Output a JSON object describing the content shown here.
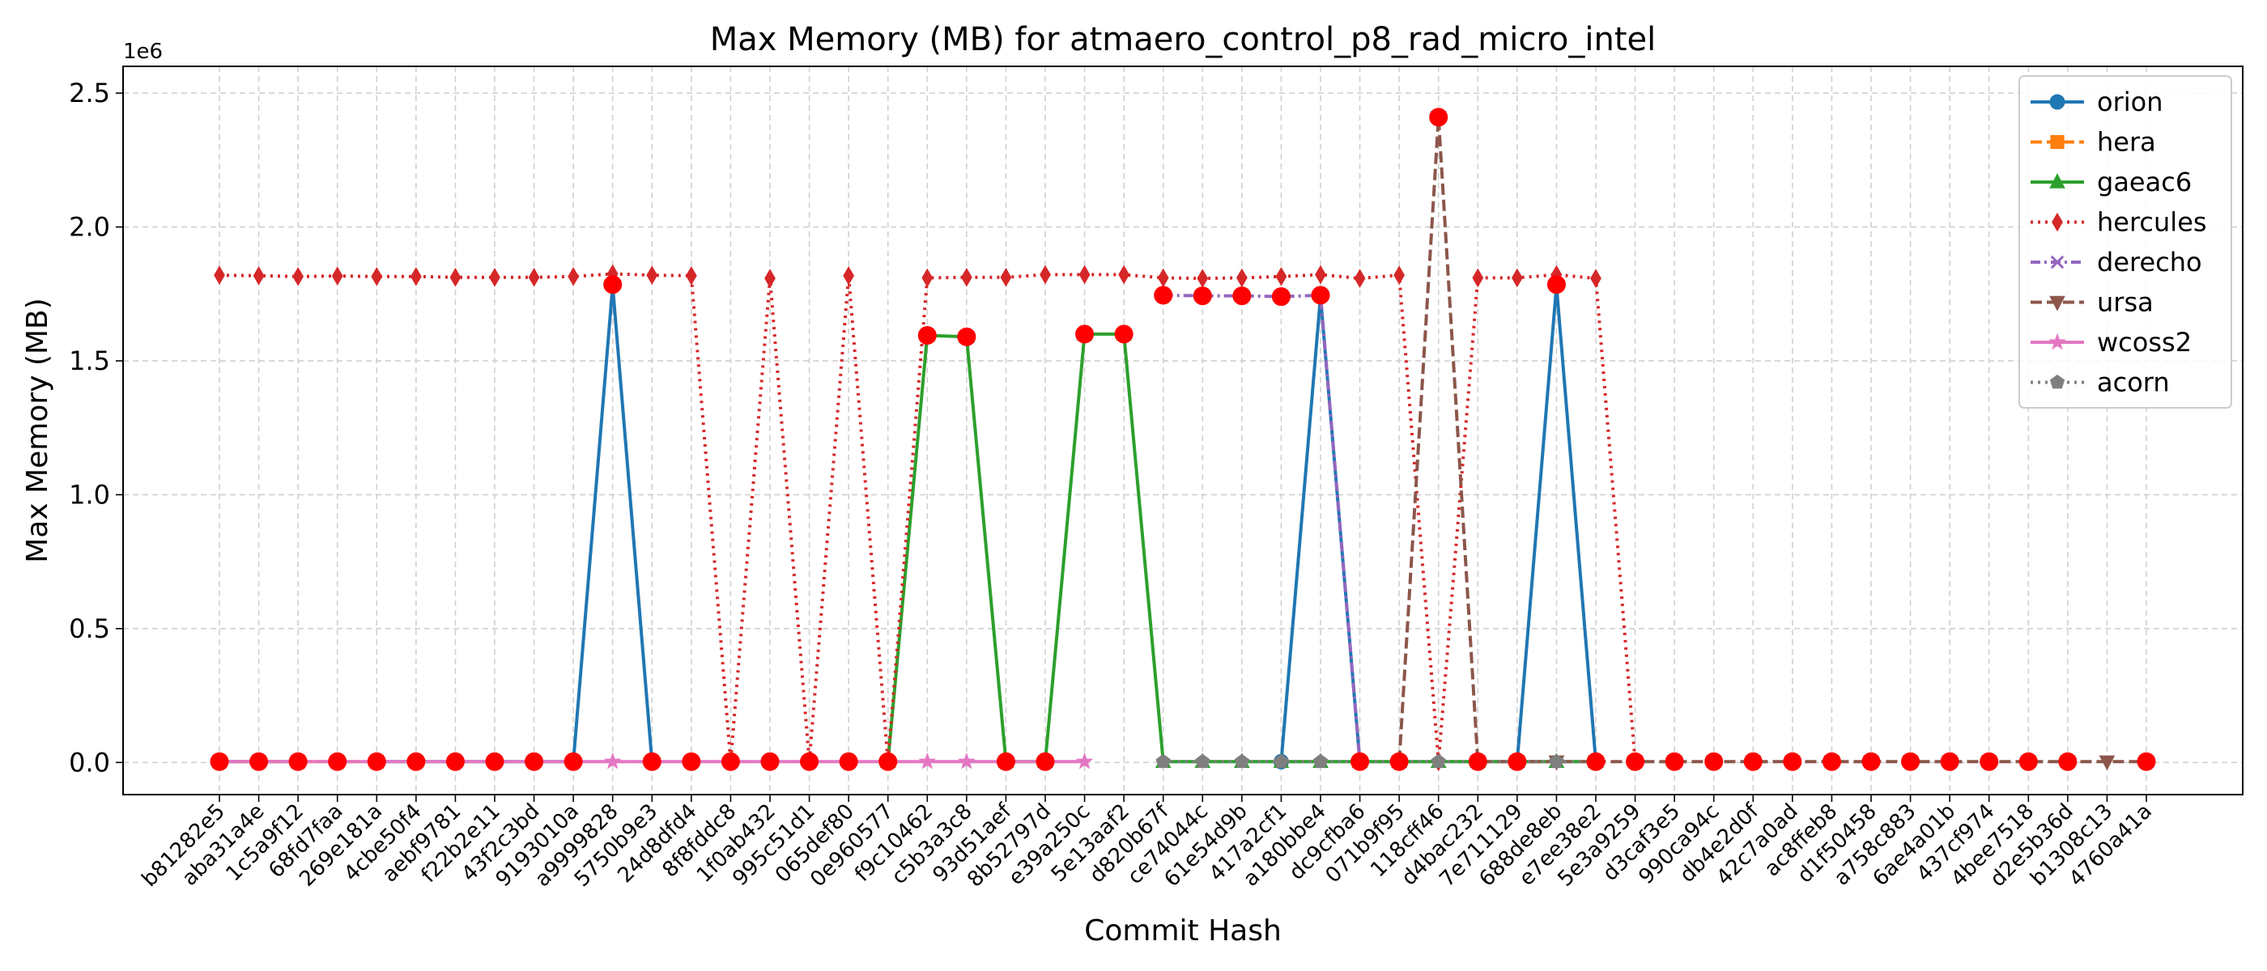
{
  "chart_data": {
    "type": "line",
    "title": "Max Memory (MB) for atmaero_control_p8_rad_micro_intel",
    "xlabel": "Commit Hash",
    "ylabel": "Max Memory (MB)",
    "y_offset_label": "1e6",
    "ylim": [
      -120000,
      2600000
    ],
    "yticks": [
      0,
      500000,
      1000000,
      1500000,
      2000000,
      2500000
    ],
    "ytick_labels": [
      "0.0",
      "0.5",
      "1.0",
      "1.5",
      "2.0",
      "2.5"
    ],
    "grid": true,
    "legend_position": "top-right",
    "categories": [
      "b81282e5",
      "aba31a4e",
      "1c5a9f12",
      "68fd7faa",
      "269e181a",
      "4cbe50f4",
      "aebf9781",
      "f22b2e11",
      "43f2c3bd",
      "9193010a",
      "a9999828",
      "5750b9e3",
      "24d8dfd4",
      "8f8fddc8",
      "1f0ab432",
      "995c51d1",
      "065def80",
      "0e960577",
      "f9c10462",
      "c5b3a3c8",
      "93d51aef",
      "8b52797d",
      "e39a250c",
      "5e13aaf2",
      "d820b67f",
      "ce74044c",
      "61e54d9b",
      "417a2cf1",
      "a180bbe4",
      "dc9cfba6",
      "071b9f95",
      "118cff46",
      "d4bac232",
      "7e711129",
      "688de8eb",
      "e7ee38e2",
      "5e3a9259",
      "d3caf3e5",
      "990ca94c",
      "db4e2d0f",
      "42c7a0ad",
      "ac8ffeb8",
      "d1f50458",
      "a758c883",
      "6ae4a01b",
      "437cf974",
      "4bee7518",
      "d2e5b36d",
      "b1308c13",
      "4760a41a"
    ],
    "series": [
      {
        "name": "orion",
        "color": "#1f77b4",
        "marker": "circle",
        "dash": "solid",
        "values": [
          3000,
          3000,
          3000,
          null,
          3000,
          3000,
          3000,
          3000,
          3000,
          3000,
          1780000,
          3000,
          null,
          null,
          null,
          null,
          null,
          null,
          null,
          null,
          null,
          null,
          null,
          null,
          null,
          null,
          null,
          3000,
          1740000,
          3000,
          null,
          null,
          null,
          3000,
          1780000,
          3000,
          null,
          null,
          null,
          null,
          null,
          null,
          null,
          null,
          null,
          null,
          null,
          null,
          null,
          null
        ]
      },
      {
        "name": "hera",
        "color": "#ff7f0e",
        "marker": "square",
        "dash": "dashed",
        "values": [
          3000,
          3000,
          3000,
          3000,
          3000,
          null,
          null,
          null,
          null,
          null,
          null,
          null,
          null,
          null,
          null,
          null,
          null,
          null,
          null,
          null,
          null,
          null,
          null,
          null,
          null,
          null,
          null,
          null,
          null,
          null,
          null,
          null,
          null,
          null,
          null,
          null,
          null,
          null,
          null,
          null,
          null,
          null,
          null,
          null,
          null,
          null,
          null,
          null,
          null,
          null
        ]
      },
      {
        "name": "gaeac6",
        "color": "#2ca02c",
        "marker": "triangle-up",
        "dash": "solid",
        "values": [
          null,
          null,
          null,
          null,
          null,
          null,
          null,
          null,
          null,
          null,
          null,
          null,
          null,
          null,
          null,
          null,
          null,
          3000,
          1595000,
          1590000,
          3000,
          3000,
          1600000,
          1600000,
          3000,
          3000,
          3000,
          3000,
          3000,
          3000,
          3000,
          3000,
          3000,
          3000,
          3000,
          3000,
          null,
          null,
          null,
          null,
          null,
          null,
          null,
          null,
          null,
          null,
          null,
          null,
          null,
          null
        ]
      },
      {
        "name": "hercules",
        "color": "#d62728",
        "marker": "diamond",
        "dash": "dotted",
        "values": [
          1820000,
          1818000,
          1815000,
          1817000,
          1815000,
          1815000,
          1812000,
          1812000,
          1812000,
          1815000,
          1825000,
          1820000,
          1818000,
          3000,
          1808000,
          3000,
          1818000,
          3000,
          1810000,
          1812000,
          1812000,
          1822000,
          1822000,
          1822000,
          1810000,
          1808000,
          1810000,
          1815000,
          1822000,
          1808000,
          1820000,
          3000,
          1810000,
          1810000,
          1822000,
          1808000,
          3000,
          null,
          null,
          null,
          null,
          null,
          null,
          null,
          null,
          null,
          null,
          null,
          null,
          null
        ]
      },
      {
        "name": "derecho",
        "color": "#9467bd",
        "marker": "x",
        "dash": "dashdot",
        "values": [
          null,
          null,
          null,
          null,
          null,
          null,
          null,
          null,
          null,
          null,
          null,
          null,
          null,
          null,
          null,
          null,
          null,
          null,
          null,
          null,
          null,
          null,
          null,
          null,
          1745000,
          1743000,
          1743000,
          1740000,
          1745000,
          3000,
          null,
          null,
          null,
          null,
          null,
          null,
          null,
          null,
          null,
          null,
          null,
          null,
          null,
          null,
          null,
          null,
          null,
          null,
          null,
          null
        ]
      },
      {
        "name": "ursa",
        "color": "#8c564b",
        "marker": "triangle-down",
        "dash": "dashed",
        "values": [
          null,
          null,
          null,
          null,
          null,
          null,
          null,
          null,
          null,
          null,
          null,
          null,
          null,
          null,
          null,
          null,
          null,
          null,
          null,
          null,
          null,
          null,
          null,
          null,
          null,
          null,
          null,
          null,
          null,
          null,
          3000,
          2410000,
          3000,
          3000,
          3000,
          3000,
          3000,
          3000,
          3000,
          3000,
          3000,
          3000,
          3000,
          3000,
          3000,
          3000,
          3000,
          3000,
          3000,
          3000
        ]
      },
      {
        "name": "wcoss2",
        "color": "#e377c2",
        "marker": "star",
        "dash": "solid",
        "values": [
          3000,
          3000,
          3000,
          3000,
          3000,
          3000,
          3000,
          3000,
          3000,
          3000,
          3000,
          3000,
          3000,
          3000,
          3000,
          3000,
          3000,
          3000,
          3000,
          3000,
          3000,
          3000,
          3000,
          null,
          null,
          null,
          null,
          null,
          null,
          null,
          null,
          null,
          null,
          null,
          null,
          null,
          null,
          null,
          null,
          null,
          null,
          null,
          null,
          null,
          null,
          null,
          null,
          null,
          null,
          null
        ]
      },
      {
        "name": "acorn",
        "color": "#7f7f7f",
        "marker": "pentagon",
        "dash": "dotted",
        "values": [
          null,
          null,
          null,
          null,
          null,
          null,
          null,
          null,
          null,
          null,
          null,
          null,
          null,
          null,
          null,
          null,
          null,
          null,
          null,
          null,
          null,
          null,
          null,
          null,
          3000,
          3000,
          3000,
          3000,
          3000,
          3000,
          3000,
          3000,
          3000,
          3000,
          3000,
          3000,
          null,
          null,
          null,
          null,
          null,
          null,
          null,
          null,
          null,
          null,
          null,
          null,
          null,
          null
        ]
      }
    ],
    "highlight": {
      "color": "#ff0000",
      "values": [
        3000,
        3000,
        3000,
        3000,
        3000,
        3000,
        3000,
        3000,
        3000,
        3000,
        1785000,
        3000,
        3000,
        3000,
        3000,
        3000,
        3000,
        3000,
        1595000,
        1590000,
        3000,
        3000,
        1600000,
        1600000,
        1745000,
        1743000,
        1743000,
        1740000,
        1745000,
        3000,
        3000,
        2410000,
        3000,
        3000,
        1785000,
        3000,
        3000,
        3000,
        3000,
        3000,
        3000,
        3000,
        3000,
        3000,
        3000,
        3000,
        3000,
        3000,
        null,
        3000
      ]
    }
  }
}
